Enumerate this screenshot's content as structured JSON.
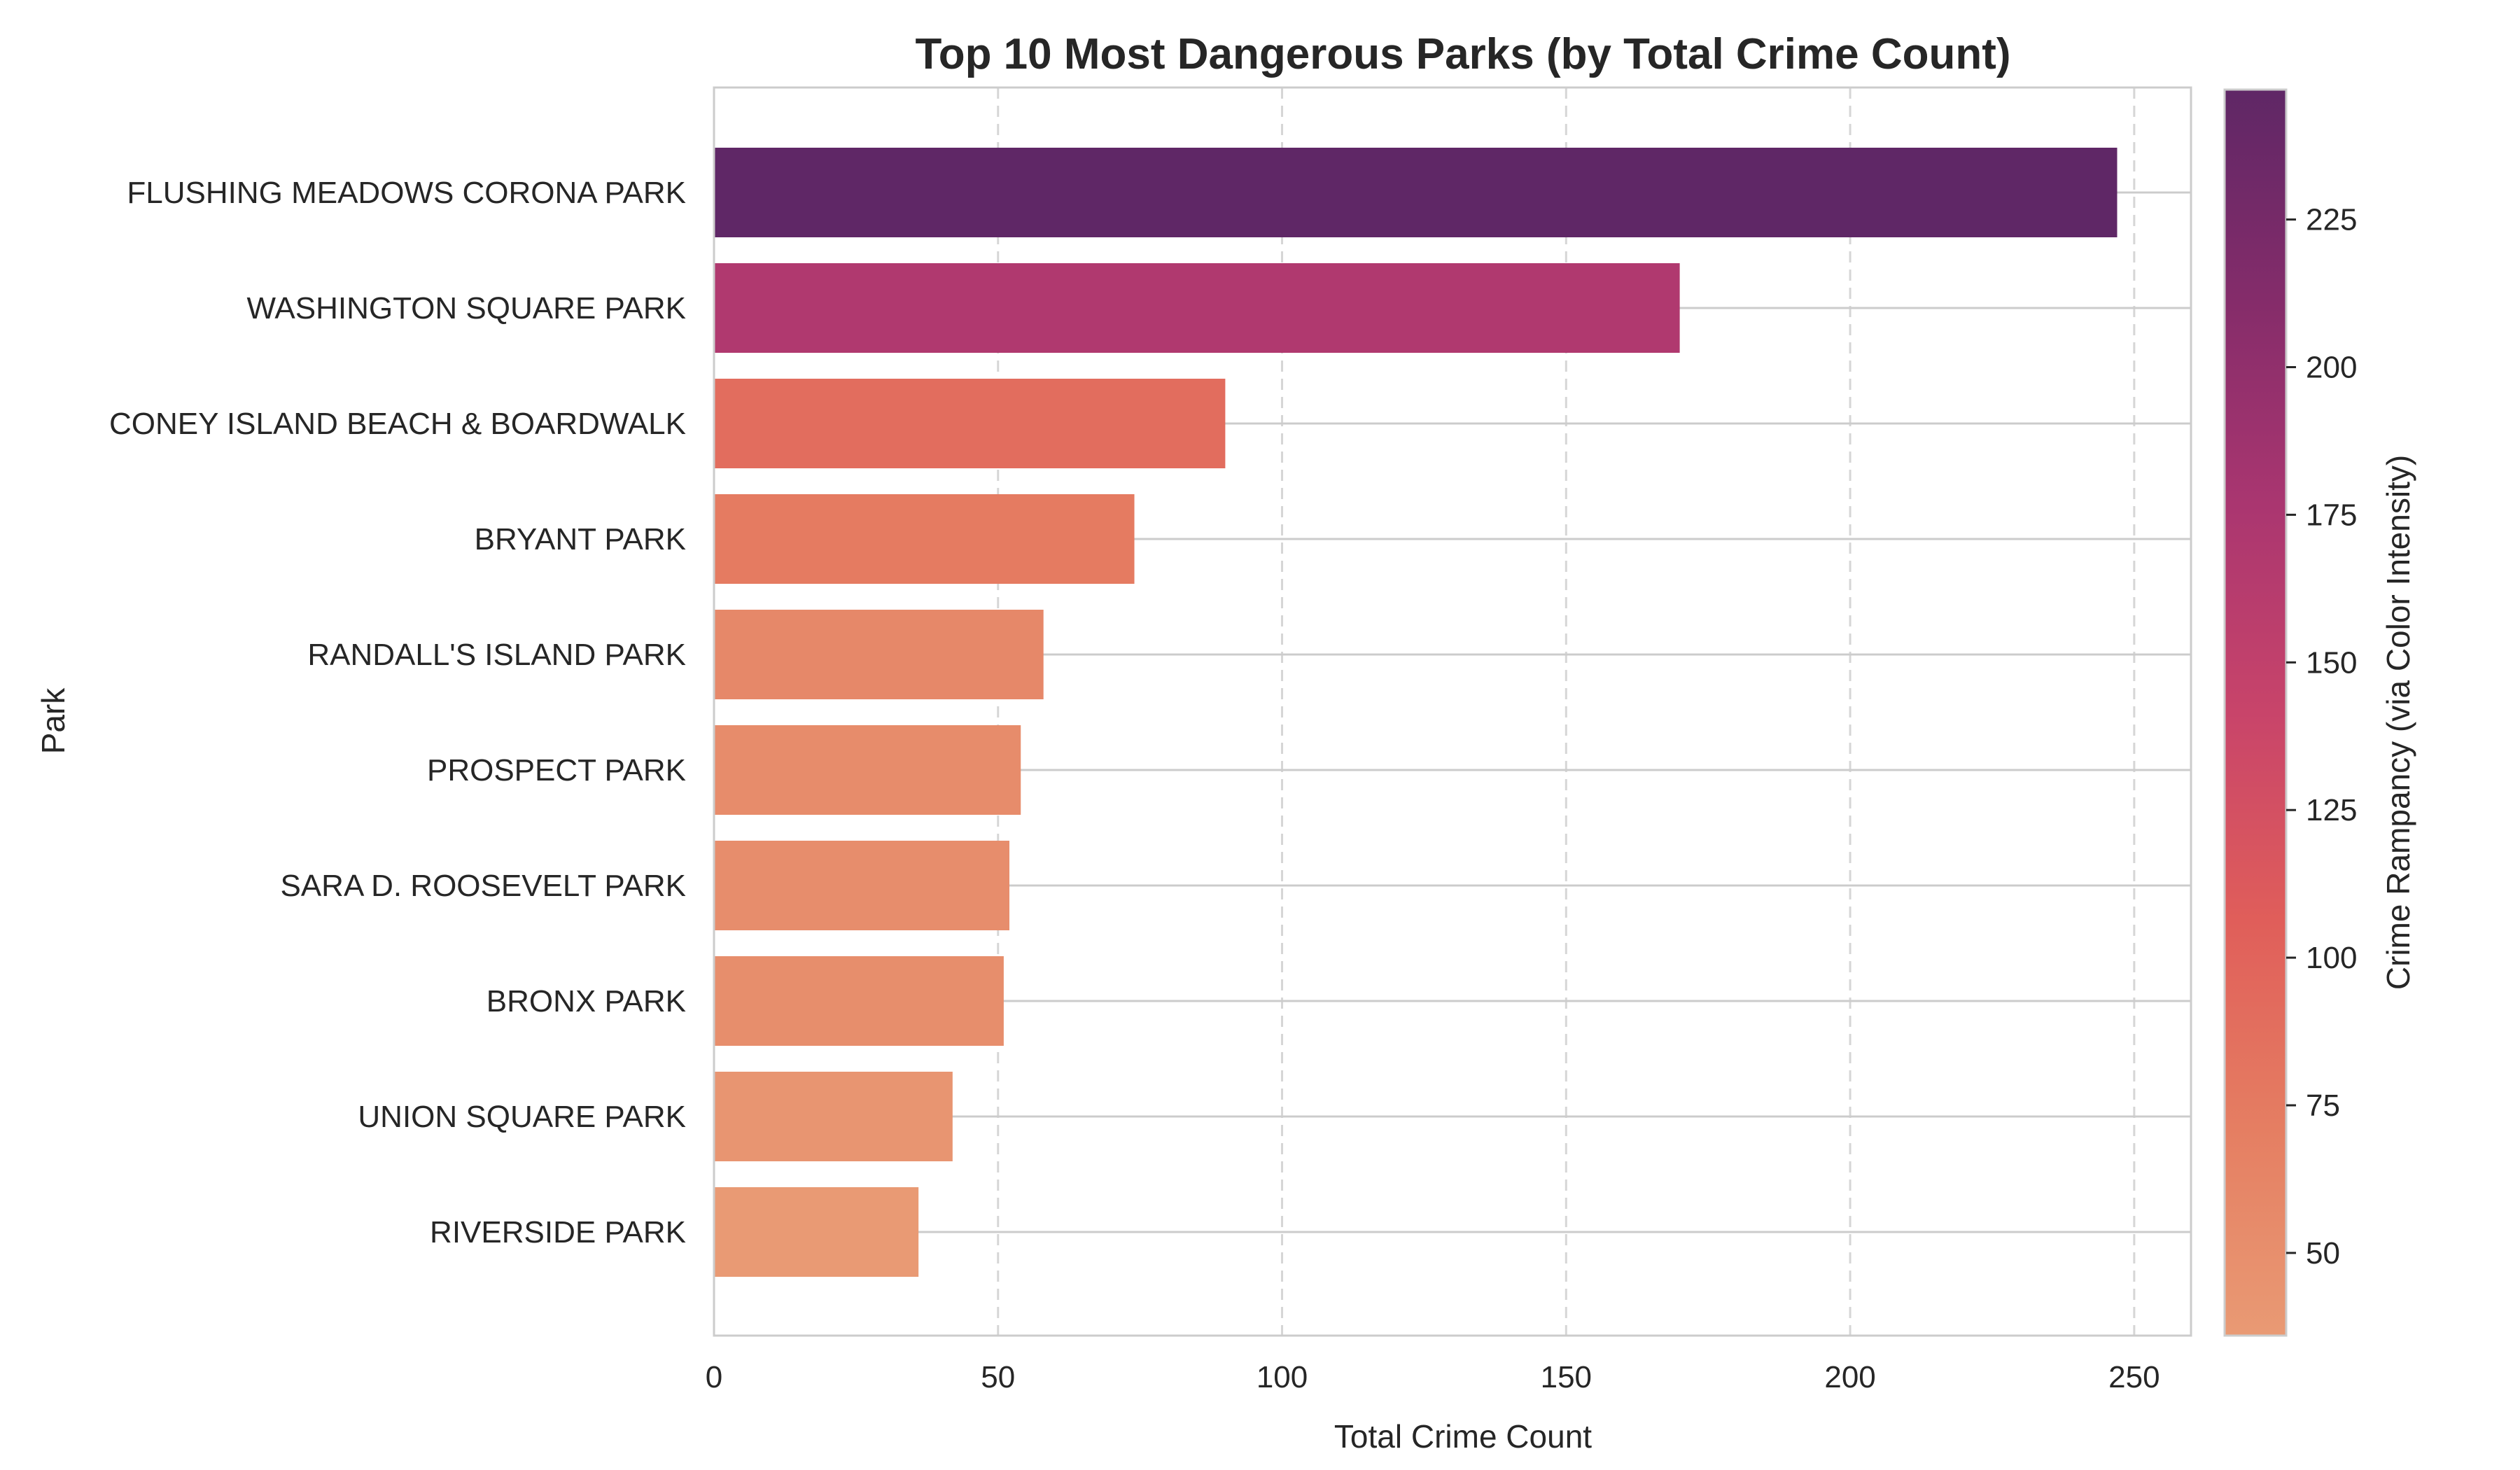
{
  "chart_data": {
    "type": "bar",
    "orientation": "horizontal",
    "title": "Top 10 Most Dangerous Parks (by Total Crime Count)",
    "xlabel": "Total Crime Count",
    "ylabel": "Park",
    "xlim": [
      0,
      260
    ],
    "xticks": [
      0,
      50,
      100,
      150,
      200,
      250
    ],
    "grid": "x dashed",
    "categories": [
      "FLUSHING MEADOWS CORONA PARK",
      "WASHINGTON SQUARE PARK",
      "CONEY ISLAND BEACH & BOARDWALK",
      "BRYANT PARK",
      "RANDALL'S ISLAND PARK",
      "PROSPECT PARK",
      "SARA D. ROOSEVELT PARK",
      "BRONX PARK",
      "UNION SQUARE PARK",
      "RIVERSIDE PARK"
    ],
    "values": [
      247,
      170,
      90,
      74,
      58,
      54,
      52,
      51,
      42,
      36
    ],
    "colorbar": {
      "label": "Crime Rampancy (via Color Intensity)",
      "range": [
        36,
        247
      ],
      "ticks": [
        50,
        75,
        100,
        125,
        150,
        175,
        200,
        225
      ],
      "colormap": "flare",
      "colors": [
        "#e99a74",
        "#e57e62",
        "#e05e5a",
        "#c8446a",
        "#aa3670",
        "#842c6a",
        "#5f2766"
      ]
    }
  }
}
